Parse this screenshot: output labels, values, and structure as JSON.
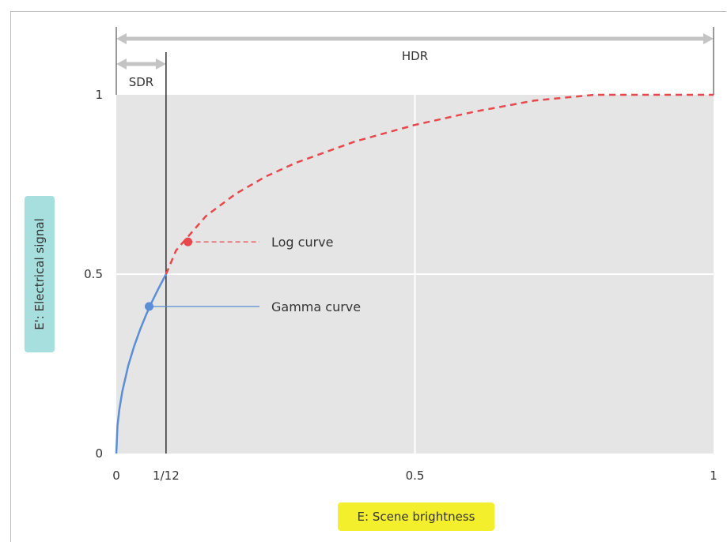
{
  "colors": {
    "plot_bg": "#e5e5e5",
    "grid": "#ffffff",
    "gamma": "#5b8ed6",
    "log": "#e8474b",
    "arrow": "#c4c4c4",
    "xlabel_bg": "#f4ef2c",
    "ylabel_bg": "#a6dfde"
  },
  "chart_data": {
    "type": "line",
    "xlabel": "E: Scene brightness",
    "ylabel": "E': Electrical signal",
    "xlim": [
      0,
      1
    ],
    "ylim": [
      0,
      1
    ],
    "x_ticks": [
      {
        "value": 0,
        "label": "0"
      },
      {
        "value": 0.0833,
        "label": "1/12"
      },
      {
        "value": 0.5,
        "label": "0.5"
      },
      {
        "value": 1,
        "label": "1"
      }
    ],
    "y_ticks": [
      {
        "value": 0,
        "label": "0"
      },
      {
        "value": 0.5,
        "label": "0.5"
      },
      {
        "value": 1,
        "label": "1"
      }
    ],
    "grid": true,
    "series": [
      {
        "name": "Gamma curve",
        "style": "solid",
        "color": "#5b8ed6",
        "x": [
          0,
          0.002,
          0.005,
          0.01,
          0.02,
          0.03,
          0.04,
          0.05,
          0.06,
          0.07,
          0.0833
        ],
        "y": [
          0,
          0.077,
          0.122,
          0.173,
          0.245,
          0.3,
          0.346,
          0.387,
          0.424,
          0.458,
          0.5
        ]
      },
      {
        "name": "Log curve",
        "style": "dashed",
        "color": "#e8474b",
        "x": [
          0.0833,
          0.1,
          0.15,
          0.2,
          0.25,
          0.3,
          0.4,
          0.5,
          0.6,
          0.7,
          0.8,
          0.9,
          1.0
        ],
        "y": [
          0.5,
          0.566,
          0.662,
          0.724,
          0.772,
          0.81,
          0.87,
          0.916,
          0.953,
          0.984,
          1.0,
          1.0,
          1.0
        ]
      }
    ],
    "markers": [
      {
        "series": "Gamma curve",
        "x": 0.055,
        "y": 0.41
      },
      {
        "series": "Log curve",
        "x": 0.12,
        "y": 0.59
      }
    ],
    "annotations": [
      {
        "text": "Log curve",
        "series": "Log curve"
      },
      {
        "text": "Gamma curve",
        "series": "Gamma curve"
      },
      {
        "text": "SDR",
        "range": [
          0,
          0.0833
        ]
      },
      {
        "text": "HDR",
        "range": [
          0,
          1
        ]
      }
    ]
  }
}
